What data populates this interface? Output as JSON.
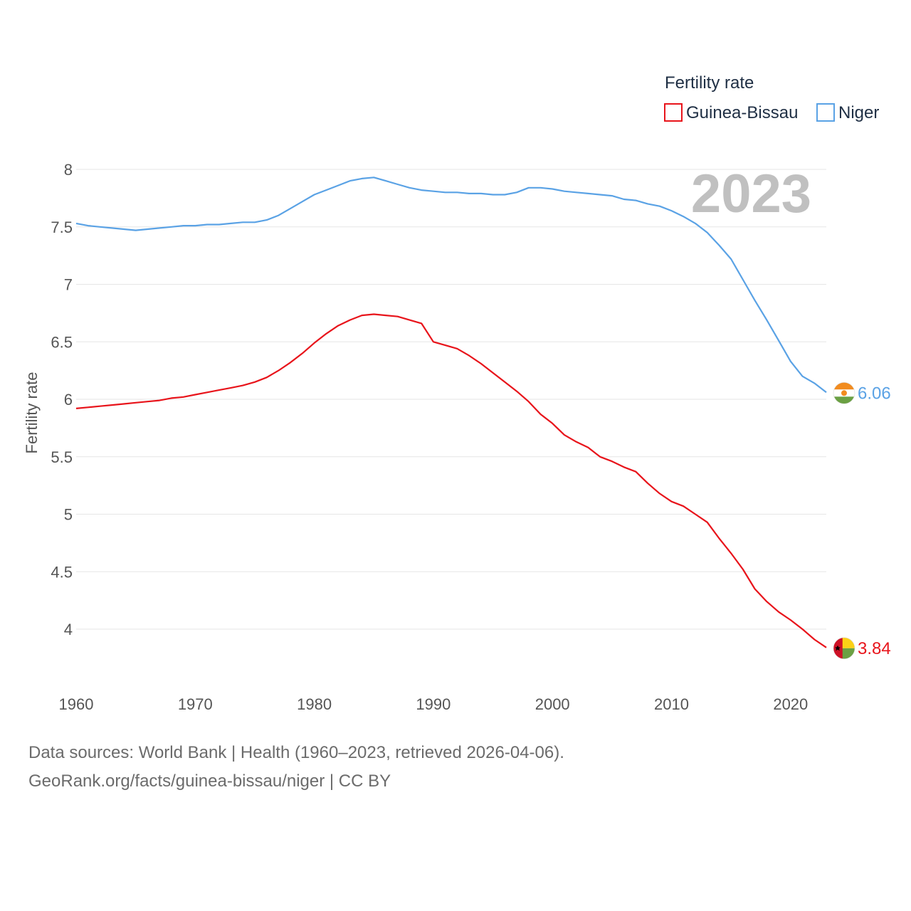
{
  "chart_data": {
    "type": "line",
    "title": "",
    "current_year": "2023",
    "ylabel": "Fertility rate",
    "xlabel": "",
    "ylim": [
      3.55,
      8.1
    ],
    "xlim": [
      1960,
      2023
    ],
    "x_ticks": [
      1960,
      1970,
      1980,
      1990,
      2000,
      2010,
      2020
    ],
    "y_ticks": [
      4,
      4.5,
      5,
      5.5,
      6,
      6.5,
      7,
      7.5,
      8
    ],
    "y_tick_labels": [
      "4",
      "4.5",
      "5",
      "5.5",
      "6",
      "6.5",
      "7",
      "7.5",
      "8"
    ],
    "x_tick_labels": [
      "1960",
      "1970",
      "1980",
      "1990",
      "2000",
      "2010",
      "2020"
    ],
    "legend": {
      "title": "Fertility rate",
      "position": "top-right"
    },
    "x": [
      1960,
      1961,
      1962,
      1963,
      1964,
      1965,
      1966,
      1967,
      1968,
      1969,
      1970,
      1971,
      1972,
      1973,
      1974,
      1975,
      1976,
      1977,
      1978,
      1979,
      1980,
      1981,
      1982,
      1983,
      1984,
      1985,
      1986,
      1987,
      1988,
      1989,
      1990,
      1991,
      1992,
      1993,
      1994,
      1995,
      1996,
      1997,
      1998,
      1999,
      2000,
      2001,
      2002,
      2003,
      2004,
      2005,
      2006,
      2007,
      2008,
      2009,
      2010,
      2011,
      2012,
      2013,
      2014,
      2015,
      2016,
      2017,
      2018,
      2019,
      2020,
      2021,
      2022,
      2023
    ],
    "series": [
      {
        "name": "Guinea-Bissau",
        "color": "#e8141b",
        "end_label": "3.84",
        "flag": "guinea-bissau-flag",
        "values": [
          5.92,
          5.93,
          5.94,
          5.95,
          5.96,
          5.97,
          5.98,
          5.99,
          6.01,
          6.02,
          6.04,
          6.06,
          6.08,
          6.1,
          6.12,
          6.15,
          6.19,
          6.25,
          6.32,
          6.4,
          6.49,
          6.57,
          6.64,
          6.69,
          6.73,
          6.74,
          6.73,
          6.72,
          6.69,
          6.66,
          6.5,
          6.47,
          6.44,
          6.38,
          6.31,
          6.23,
          6.15,
          6.07,
          5.98,
          5.87,
          5.79,
          5.69,
          5.63,
          5.58,
          5.5,
          5.46,
          5.41,
          5.37,
          5.27,
          5.18,
          5.11,
          5.07,
          5.0,
          4.93,
          4.79,
          4.66,
          4.52,
          4.35,
          4.24,
          4.15,
          4.08,
          4.0,
          3.91,
          3.84
        ]
      },
      {
        "name": "Niger",
        "color": "#5aa2e5",
        "end_label": "6.06",
        "flag": "niger-flag",
        "values": [
          7.53,
          7.51,
          7.5,
          7.49,
          7.48,
          7.47,
          7.48,
          7.49,
          7.5,
          7.51,
          7.51,
          7.52,
          7.52,
          7.53,
          7.54,
          7.54,
          7.56,
          7.6,
          7.66,
          7.72,
          7.78,
          7.82,
          7.86,
          7.9,
          7.92,
          7.93,
          7.9,
          7.87,
          7.84,
          7.82,
          7.81,
          7.8,
          7.8,
          7.79,
          7.79,
          7.78,
          7.78,
          7.8,
          7.84,
          7.84,
          7.83,
          7.81,
          7.8,
          7.79,
          7.78,
          7.77,
          7.74,
          7.73,
          7.7,
          7.68,
          7.64,
          7.59,
          7.53,
          7.45,
          7.34,
          7.22,
          7.04,
          6.86,
          6.69,
          6.51,
          6.33,
          6.2,
          6.14,
          6.06
        ]
      }
    ]
  },
  "footer": {
    "line1": "Data sources: World Bank | Health (1960–2023, retrieved 2026-04-06).",
    "line2": "GeoRank.org/facts/guinea-bissau/niger | CC BY"
  }
}
